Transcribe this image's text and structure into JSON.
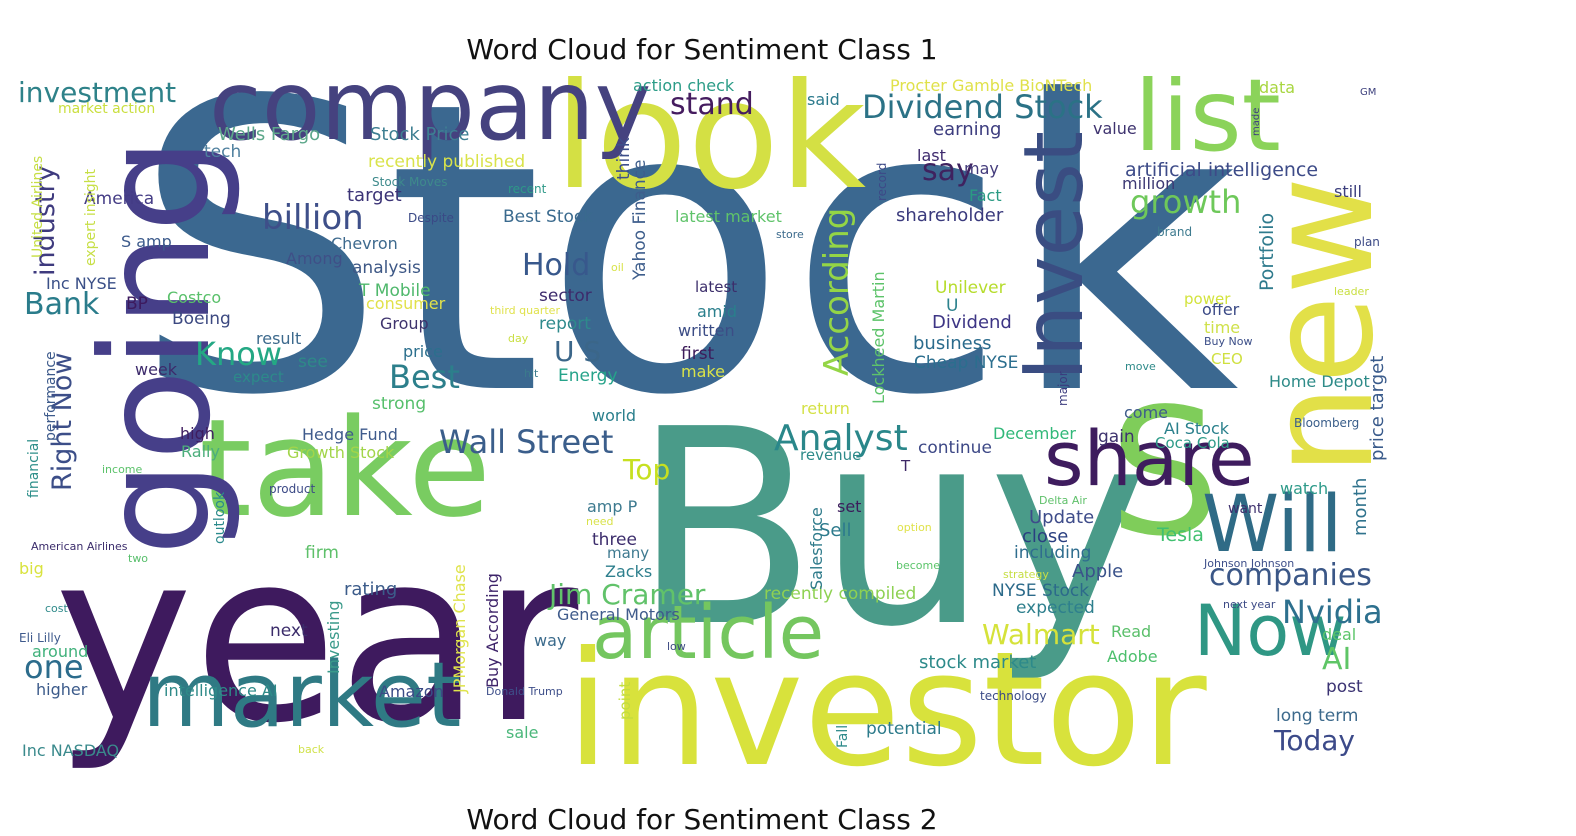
{
  "figure": {
    "title_1": "Word Cloud for Sentiment Class 1",
    "title_2": "Word Cloud for Sentiment Class 2"
  },
  "wordcloud": {
    "colormap": "viridis",
    "background": "#ffffff",
    "words": [
      {
        "text": "Stock",
        "color": "#3b6890"
      },
      {
        "text": "Buy",
        "color": "#4a9b89"
      },
      {
        "text": "year",
        "color": "#3e1a5e"
      },
      {
        "text": "investor",
        "color": "#d8e23c"
      },
      {
        "text": "look",
        "color": "#d4e044"
      },
      {
        "text": "take",
        "color": "#79cc61"
      },
      {
        "text": "going",
        "color": "#463f89"
      },
      {
        "text": "company",
        "color": "#45427f"
      },
      {
        "text": "market",
        "color": "#2f7a84"
      },
      {
        "text": "new",
        "color": "#e2e048"
      },
      {
        "text": "list",
        "color": "#8bd35a"
      },
      {
        "text": "S",
        "color": "#7fcd5a"
      },
      {
        "text": "Invest",
        "color": "#3a4d82"
      },
      {
        "text": "share",
        "color": "#3e1c5e"
      },
      {
        "text": "article",
        "color": "#74c65f"
      },
      {
        "text": "Will",
        "color": "#2f6b86"
      },
      {
        "text": "Now",
        "color": "#2f9784"
      },
      {
        "text": "Dividend Stock",
        "color": "#2b7286"
      },
      {
        "text": "billion",
        "color": "#3e4f89"
      },
      {
        "text": "Wall Street",
        "color": "#3b5e8b"
      },
      {
        "text": "Analyst",
        "color": "#2a878a"
      },
      {
        "text": "Jim Cramer",
        "color": "#61c26a"
      },
      {
        "text": "companies",
        "color": "#3b5787"
      },
      {
        "text": "Nvidia",
        "color": "#2d708e"
      },
      {
        "text": "industry",
        "color": "#3e3a7e"
      },
      {
        "text": "investment",
        "color": "#2e8289"
      },
      {
        "text": "growth",
        "color": "#6ec85a"
      },
      {
        "text": "According",
        "color": "#94d546"
      },
      {
        "text": "Hold",
        "color": "#38588c"
      },
      {
        "text": "Best",
        "color": "#2c7f8b"
      },
      {
        "text": "Know",
        "color": "#24a884"
      },
      {
        "text": "stand",
        "color": "#451c5f"
      },
      {
        "text": "say",
        "color": "#3f225f"
      },
      {
        "text": "Top",
        "color": "#c7e020"
      },
      {
        "text": "Right Now",
        "color": "#3c4e88"
      },
      {
        "text": "Bank",
        "color": "#2a7c8b"
      },
      {
        "text": "one",
        "color": "#2c6c8c"
      },
      {
        "text": "Walmart",
        "color": "#d5e23a"
      },
      {
        "text": "AI",
        "color": "#5ec566"
      },
      {
        "text": "Today",
        "color": "#3c4a89"
      },
      {
        "text": "U S",
        "color": "#3b6689"
      },
      {
        "text": "artificial intelligence",
        "color": "#3d4b88"
      },
      {
        "text": "Portfolio",
        "color": "#2f7b8d"
      },
      {
        "text": "price target",
        "color": "#3a5b8b"
      },
      {
        "text": "month",
        "color": "#30738d"
      },
      {
        "text": "Apple",
        "color": "#3a528a"
      },
      {
        "text": "Tesla",
        "color": "#40c070"
      },
      {
        "text": "Update",
        "color": "#3e4c8a"
      },
      {
        "text": "close",
        "color": "#2a3f80"
      },
      {
        "text": "including",
        "color": "#2f6d8e"
      },
      {
        "text": "NYSE Stock",
        "color": "#2c6a8a"
      },
      {
        "text": "expected",
        "color": "#2e7f8d"
      },
      {
        "text": "Dividend",
        "color": "#3d3585"
      },
      {
        "text": "business",
        "color": "#2a6b8c"
      },
      {
        "text": "Cheap NYSE",
        "color": "#2b6e8e"
      },
      {
        "text": "Unilever",
        "color": "#b6dc2c"
      },
      {
        "text": "U",
        "color": "#2d828d"
      },
      {
        "text": "shareholder",
        "color": "#3a3a7d"
      },
      {
        "text": "earning",
        "color": "#3d3d7f"
      },
      {
        "text": "last",
        "color": "#3e2a6d"
      },
      {
        "text": "may",
        "color": "#433b7b"
      },
      {
        "text": "Fact",
        "color": "#2a9a83"
      },
      {
        "text": "value",
        "color": "#3e336f"
      },
      {
        "text": "million",
        "color": "#3d3974"
      },
      {
        "text": "still",
        "color": "#3c3f7d"
      },
      {
        "text": "data",
        "color": "#a8d640"
      },
      {
        "text": "Procter Gamble BioNTech",
        "color": "#e0e14a"
      },
      {
        "text": "action check",
        "color": "#2b9c87"
      },
      {
        "text": "said",
        "color": "#2b7a8c"
      },
      {
        "text": "Stock Price",
        "color": "#3e7f92"
      },
      {
        "text": "Wells Fargo",
        "color": "#5ca78a"
      },
      {
        "text": "tech",
        "color": "#4e7f9e"
      },
      {
        "text": "recently published",
        "color": "#d9e34a"
      },
      {
        "text": "target",
        "color": "#3b3376"
      },
      {
        "text": "America",
        "color": "#443c85"
      },
      {
        "text": "Best Stock",
        "color": "#3a6a8e"
      },
      {
        "text": "latest market",
        "color": "#5fc36a"
      },
      {
        "text": "Chevron",
        "color": "#3e6a8e"
      },
      {
        "text": "Among",
        "color": "#3f4f87"
      },
      {
        "text": "analysis",
        "color": "#3e5886"
      },
      {
        "text": "S amp",
        "color": "#3c5a8b"
      },
      {
        "text": "Inc NYSE",
        "color": "#3a4f87"
      },
      {
        "text": "BP",
        "color": "#3c1a5e"
      },
      {
        "text": "Costco",
        "color": "#59c06a"
      },
      {
        "text": "Boeing",
        "color": "#3c4981"
      },
      {
        "text": "T Mobile",
        "color": "#4fb86c"
      },
      {
        "text": "consumer",
        "color": "#e1e14a"
      },
      {
        "text": "Group",
        "color": "#3e336d"
      },
      {
        "text": "sector",
        "color": "#3d2b6c"
      },
      {
        "text": "report",
        "color": "#2e8a8c"
      },
      {
        "text": "result",
        "color": "#3c698c"
      },
      {
        "text": "price",
        "color": "#2c6f8d"
      },
      {
        "text": "week",
        "color": "#3c2a6b"
      },
      {
        "text": "expect",
        "color": "#2d8a8a"
      },
      {
        "text": "see",
        "color": "#2e8a88"
      },
      {
        "text": "Energy",
        "color": "#26a38a"
      },
      {
        "text": "strong",
        "color": "#56bf6b"
      },
      {
        "text": "high",
        "color": "#3e1d5f"
      },
      {
        "text": "Rally",
        "color": "#4cae7c"
      },
      {
        "text": "Hedge Fund",
        "color": "#3f5b8c"
      },
      {
        "text": "Growth Stock",
        "color": "#a2d54a"
      },
      {
        "text": "world",
        "color": "#2b808d"
      },
      {
        "text": "latest",
        "color": "#3c2e6b"
      },
      {
        "text": "amid",
        "color": "#2a7f8c"
      },
      {
        "text": "written",
        "color": "#3c4d86"
      },
      {
        "text": "first",
        "color": "#3d1c5b"
      },
      {
        "text": "make",
        "color": "#d8e24a"
      },
      {
        "text": "return",
        "color": "#d4e146"
      },
      {
        "text": "come",
        "color": "#3e5b8b"
      },
      {
        "text": "December",
        "color": "#31b879"
      },
      {
        "text": "gain",
        "color": "#3e336e"
      },
      {
        "text": "AI Stock",
        "color": "#2a808c"
      },
      {
        "text": "Coca Cola",
        "color": "#2d9b88"
      },
      {
        "text": "continue",
        "color": "#3d4886"
      },
      {
        "text": "revenue",
        "color": "#2e8a89"
      },
      {
        "text": "T",
        "color": "#3e2866"
      },
      {
        "text": "set",
        "color": "#3b1d5b"
      },
      {
        "text": "Sell",
        "color": "#2c7a8c"
      },
      {
        "text": "amp P",
        "color": "#3d7a8f"
      },
      {
        "text": "three",
        "color": "#3c2d6c"
      },
      {
        "text": "many",
        "color": "#3f7a90"
      },
      {
        "text": "Zacks",
        "color": "#2e7f8d"
      },
      {
        "text": "General Motors",
        "color": "#3f5b8b"
      },
      {
        "text": "recently compiled",
        "color": "#8ed152"
      },
      {
        "text": "firm",
        "color": "#5ec06a"
      },
      {
        "text": "rating",
        "color": "#3c5c8a"
      },
      {
        "text": "next",
        "color": "#3b2c6a"
      },
      {
        "text": "way",
        "color": "#3b6b8c"
      },
      {
        "text": "Investing",
        "color": "#3a9a8a"
      },
      {
        "text": "Buy According",
        "color": "#3e246a"
      },
      {
        "text": "JPMorgan Chase",
        "color": "#dfe34c"
      },
      {
        "text": "Salesforce",
        "color": "#2f7b8b"
      },
      {
        "text": "point",
        "color": "#c3dd3e"
      },
      {
        "text": "sale",
        "color": "#4ab77a"
      },
      {
        "text": "potential",
        "color": "#2d7b8b"
      },
      {
        "text": "stock market",
        "color": "#2d8a8a"
      },
      {
        "text": "Adobe",
        "color": "#4cbf6c"
      },
      {
        "text": "Read",
        "color": "#5abf6a"
      },
      {
        "text": "deal",
        "color": "#5cc56a"
      },
      {
        "text": "post",
        "color": "#3b3373"
      },
      {
        "text": "long term",
        "color": "#3d6a8c"
      },
      {
        "text": "Home Depot",
        "color": "#2e8b88"
      },
      {
        "text": "Bloomberg",
        "color": "#3a5e8a"
      },
      {
        "text": "want",
        "color": "#3d2f6d"
      },
      {
        "text": "watch",
        "color": "#2d9a89"
      },
      {
        "text": "offer",
        "color": "#3b4a86"
      },
      {
        "text": "time",
        "color": "#cfe14a"
      },
      {
        "text": "power",
        "color": "#d3e33c"
      },
      {
        "text": "CEO",
        "color": "#cfe040"
      },
      {
        "text": "leader",
        "color": "#c8df40"
      },
      {
        "text": "plan",
        "color": "#3c4a86"
      },
      {
        "text": "brand",
        "color": "#3e7b8f"
      },
      {
        "text": "store",
        "color": "#3b6a8c"
      },
      {
        "text": "record",
        "color": "#3d4987"
      },
      {
        "text": "Lockheed Martin",
        "color": "#5dc36a"
      },
      {
        "text": "think",
        "color": "#3d4e8a"
      },
      {
        "text": "Yahoo Finance",
        "color": "#3e5e8c"
      },
      {
        "text": "recent",
        "color": "#2e9988"
      },
      {
        "text": "Despite",
        "color": "#3a4986"
      },
      {
        "text": "Stock Moves",
        "color": "#3e8a8c"
      },
      {
        "text": "oil",
        "color": "#d8e34a"
      },
      {
        "text": "third quarter",
        "color": "#e0e24c"
      },
      {
        "text": "day",
        "color": "#c9df42"
      },
      {
        "text": "hit",
        "color": "#3b7a8c"
      },
      {
        "text": "move",
        "color": "#2e8a89"
      },
      {
        "text": "major",
        "color": "#3a3a7d"
      },
      {
        "text": "Buy Now",
        "color": "#3b4e88"
      },
      {
        "text": "United Airlines",
        "color": "#c6de44"
      },
      {
        "text": "expert insight",
        "color": "#c7df45"
      },
      {
        "text": "market action",
        "color": "#cadf3e"
      },
      {
        "text": "performance",
        "color": "#3d5a8b"
      },
      {
        "text": "financial",
        "color": "#2e8f8a"
      },
      {
        "text": "outlook",
        "color": "#2b8a8c"
      },
      {
        "text": "income",
        "color": "#5bc26a"
      },
      {
        "text": "product",
        "color": "#3c4a86"
      },
      {
        "text": "American Airlines",
        "color": "#3b2c6b"
      },
      {
        "text": "two",
        "color": "#57bf6b"
      },
      {
        "text": "big",
        "color": "#d9e33e"
      },
      {
        "text": "cost",
        "color": "#2e8a8a"
      },
      {
        "text": "Eli Lilly",
        "color": "#3e5a8c"
      },
      {
        "text": "around",
        "color": "#40b17b"
      },
      {
        "text": "higher",
        "color": "#3b5a8a"
      },
      {
        "text": "intelligence AI",
        "color": "#2e8a88"
      },
      {
        "text": "Amazon",
        "color": "#3a4b86"
      },
      {
        "text": "Inc NASDAQ",
        "color": "#3a8a8c"
      },
      {
        "text": "back",
        "color": "#d0e24a"
      },
      {
        "text": "Donald Trump",
        "color": "#3e4f8a"
      },
      {
        "text": "low",
        "color": "#3c4a82"
      },
      {
        "text": "technology",
        "color": "#3a4a86"
      },
      {
        "text": "Fall",
        "color": "#2e8a8a"
      },
      {
        "text": "option",
        "color": "#dfe24a"
      },
      {
        "text": "become",
        "color": "#5bc56a"
      },
      {
        "text": "strategy",
        "color": "#c6de44"
      },
      {
        "text": "Johnson Johnson",
        "color": "#3e4f8a"
      },
      {
        "text": "next year",
        "color": "#3c4a86"
      },
      {
        "text": "Delta Air",
        "color": "#5fc06a"
      },
      {
        "text": "need",
        "color": "#d8e24a"
      },
      {
        "text": "GM",
        "color": "#3c3f7c"
      },
      {
        "text": "made",
        "color": "#3c3f7d"
      }
    ]
  }
}
